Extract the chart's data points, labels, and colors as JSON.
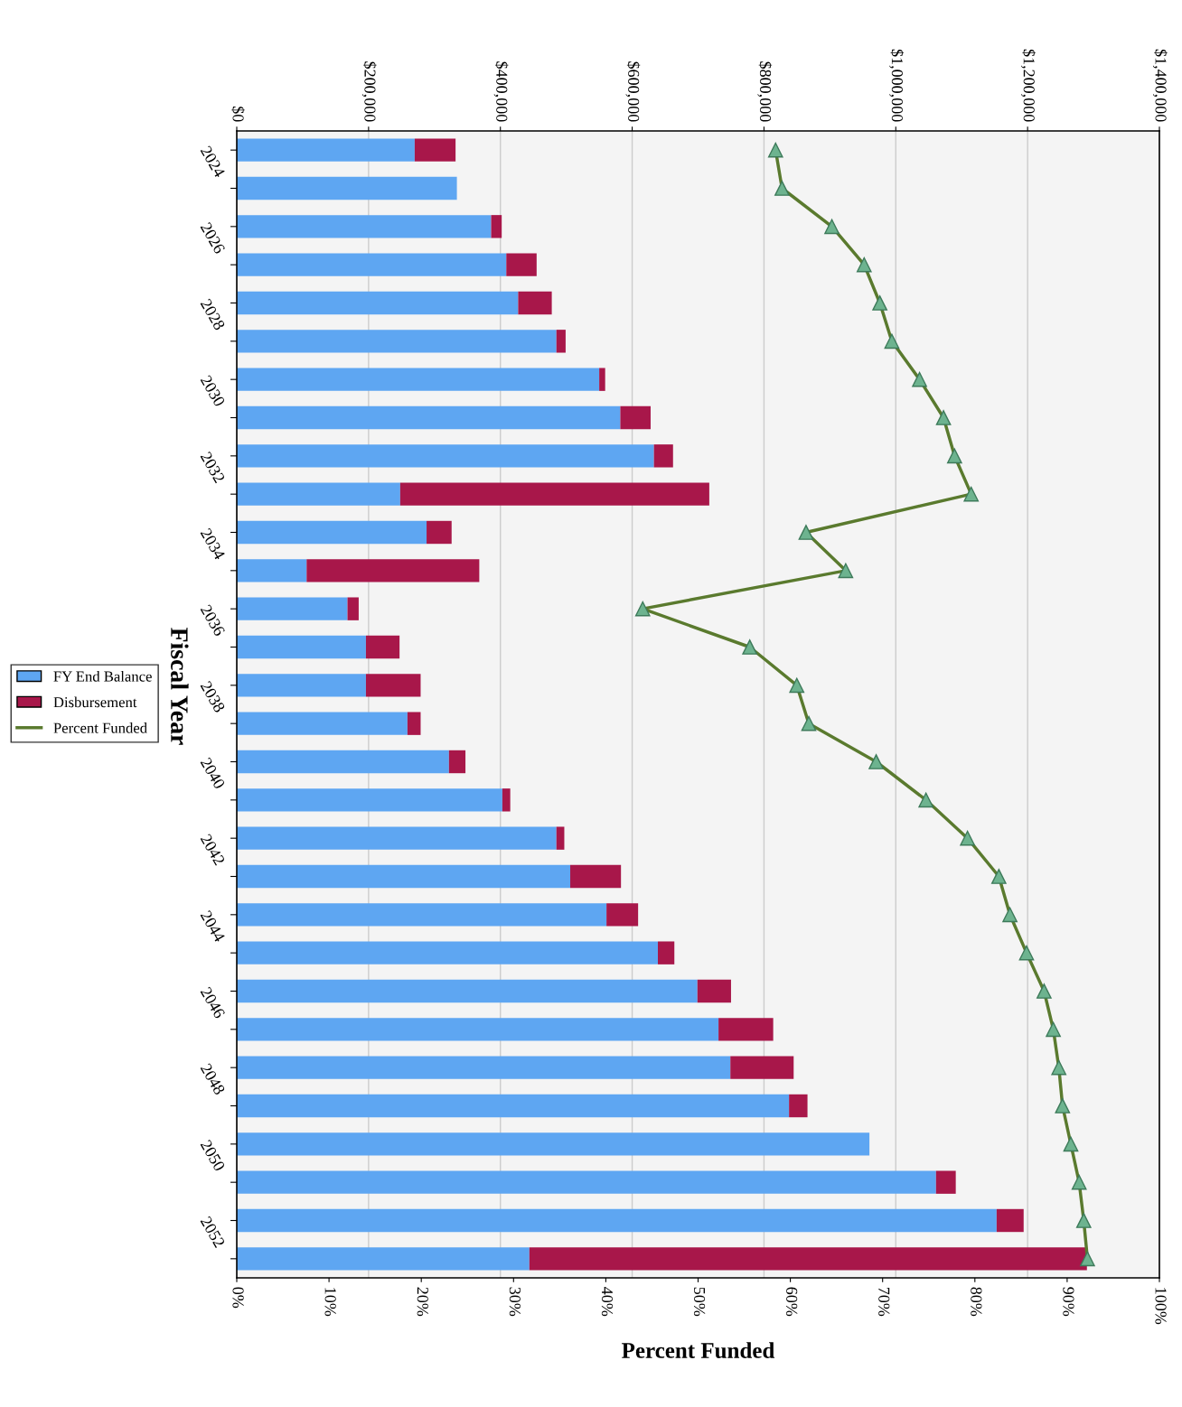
{
  "chart_data": {
    "type": "bar",
    "orientation": "horizontal",
    "stacked": true,
    "x2label": "Percent Funded",
    "ylabel": "Fiscal Year",
    "categories": [
      "2024",
      null,
      "2026",
      null,
      "2028",
      null,
      "2030",
      null,
      "2032",
      null,
      "2034",
      null,
      "2036",
      null,
      "2038",
      null,
      "2040",
      null,
      "2042",
      null,
      "2044",
      null,
      "2046",
      null,
      "2048",
      null,
      "2050",
      null,
      "2052",
      null
    ],
    "series": [
      {
        "name": "FY End Balance",
        "color": "#5ea6f2",
        "values": [
          270000,
          334000,
          386000,
          409000,
          427000,
          485000,
          550000,
          582000,
          633000,
          248000,
          288000,
          106000,
          168000,
          196000,
          196000,
          259000,
          322000,
          403000,
          485000,
          506000,
          561000,
          639000,
          699000,
          731000,
          749000,
          838000,
          960000,
          1061000,
          1153000,
          444000
        ]
      },
      {
        "name": "Disbursement",
        "color": "#a8174a",
        "values": [
          62000,
          null,
          16000,
          46000,
          51000,
          14000,
          9000,
          46000,
          29000,
          469000,
          38000,
          262000,
          17000,
          51000,
          83000,
          20000,
          25000,
          12000,
          12000,
          77000,
          48000,
          25000,
          51000,
          83000,
          96000,
          28000,
          null,
          30000,
          41000,
          846000
        ]
      },
      {
        "name": "Percent Funded",
        "type": "line",
        "axis": "x2",
        "color": "#5a7a2e",
        "marker": "triangle",
        "values": [
          58.4,
          59.1,
          64.5,
          68.0,
          69.7,
          71.0,
          74.0,
          76.6,
          77.8,
          79.6,
          61.7,
          66.0,
          44.0,
          55.6,
          60.7,
          62.0,
          69.3,
          74.7,
          79.2,
          82.6,
          83.8,
          85.6,
          87.5,
          88.5,
          89.1,
          89.5,
          90.4,
          91.3,
          91.8,
          92.2
        ]
      }
    ],
    "x2lim": [
      0,
      100
    ],
    "x2ticks": [
      {
        "value": 0,
        "label": "0%"
      },
      {
        "value": 10,
        "label": "10%"
      },
      {
        "value": 20,
        "label": "20%"
      },
      {
        "value": 30,
        "label": "30%"
      },
      {
        "value": 40,
        "label": "40%"
      },
      {
        "value": 50,
        "label": "50%"
      },
      {
        "value": 60,
        "label": "60%"
      },
      {
        "value": 70,
        "label": "70%"
      },
      {
        "value": 80,
        "label": "80%"
      },
      {
        "value": 90,
        "label": "90%"
      },
      {
        "value": 100,
        "label": "100%"
      }
    ],
    "xlim": [
      0,
      1400000
    ],
    "xticks": [
      {
        "value": 0,
        "label": "$0"
      },
      {
        "value": 200000,
        "label": "$200,000"
      },
      {
        "value": 400000,
        "label": "$400,000"
      },
      {
        "value": 600000,
        "label": "$600,000"
      },
      {
        "value": 800000,
        "label": "$800,000"
      },
      {
        "value": 1000000,
        "label": "$1,000,000"
      },
      {
        "value": 1200000,
        "label": "$1,200,000"
      },
      {
        "value": 1400000,
        "label": "$1,400,000"
      }
    ],
    "grid": "x",
    "legend": "left"
  }
}
